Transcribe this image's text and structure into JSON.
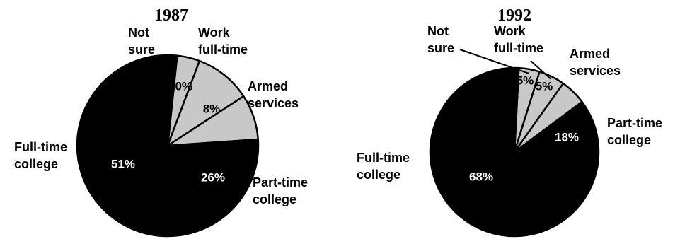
{
  "chart_data": [
    {
      "type": "pie",
      "title": "1987",
      "slices": [
        {
          "label": [
            "Not",
            "sure"
          ],
          "value": 4,
          "value_label": "4%",
          "color": "#c8c8c8"
        },
        {
          "label": [
            "Work",
            "full-time"
          ],
          "value": 10,
          "value_label": "10%",
          "color": "#c8c8c8"
        },
        {
          "label": [
            "Armed",
            "services"
          ],
          "value": 8,
          "value_label": "8%",
          "color": "#c8c8c8"
        },
        {
          "label": [
            "Part-time",
            "college"
          ],
          "value": 26,
          "value_label": "26%",
          "color": "#000000"
        },
        {
          "label": [
            "Full-time",
            "college"
          ],
          "value": 51,
          "value_label": "51%",
          "color": "#000000"
        }
      ]
    },
    {
      "type": "pie",
      "title": "1992",
      "slices": [
        {
          "label": [
            "Not",
            "sure"
          ],
          "value": 4,
          "value_label": "4%",
          "color": "#c8c8c8"
        },
        {
          "label": [
            "Work",
            "full-time"
          ],
          "value": 5,
          "value_label": "5%",
          "color": "#c8c8c8"
        },
        {
          "label": [
            "Armed",
            "services"
          ],
          "value": 5,
          "value_label": "5%",
          "color": "#c8c8c8"
        },
        {
          "label": [
            "Part-time",
            "college"
          ],
          "value": 18,
          "value_label": "18%",
          "color": "#000000"
        },
        {
          "label": [
            "Full-time",
            "college"
          ],
          "value": 68,
          "value_label": "68%",
          "color": "#000000"
        }
      ]
    }
  ]
}
